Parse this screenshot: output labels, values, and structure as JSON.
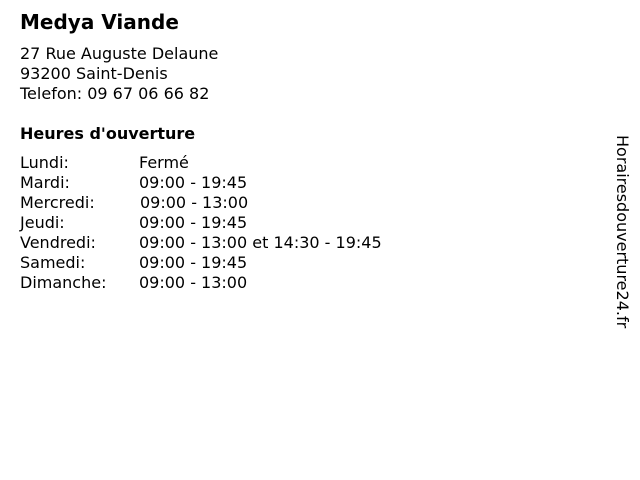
{
  "store": {
    "name": "Medya Viande",
    "street": "27 Rue Auguste Delaune",
    "city": "93200 Saint-Denis",
    "phone": "Telefon: 09 67 06 66 82"
  },
  "hours_title": "Heures d'ouverture",
  "hours": [
    {
      "day": "Lundi:",
      "time": "Fermé"
    },
    {
      "day": "Mardi:",
      "time": "09:00 - 19:45"
    },
    {
      "day": "Mercredi:",
      "time": "09:00 - 13:00"
    },
    {
      "day": "Jeudi:",
      "time": "09:00 - 19:45"
    },
    {
      "day": "Vendredi:",
      "time": "09:00 - 13:00 et 14:30 - 19:45"
    },
    {
      "day": "Samedi:",
      "time": "09:00 - 19:45"
    },
    {
      "day": "Dimanche:",
      "time": "09:00 - 13:00"
    }
  ],
  "watermark": "Horairesdouverture24.fr"
}
